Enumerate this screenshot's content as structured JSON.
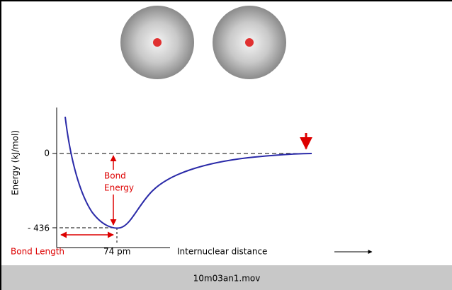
{
  "diagram": {
    "y_label": "Energy (kJ/mol)",
    "y_ticks": [
      "0",
      "- 436"
    ],
    "x_label": "Internuclear distance",
    "bond_energy": [
      "Bond",
      "Energy"
    ],
    "bond_length": "Bond Length",
    "bond_length_value": "74 pm"
  },
  "footer": {
    "file_name": "10m03an1.mov"
  }
}
